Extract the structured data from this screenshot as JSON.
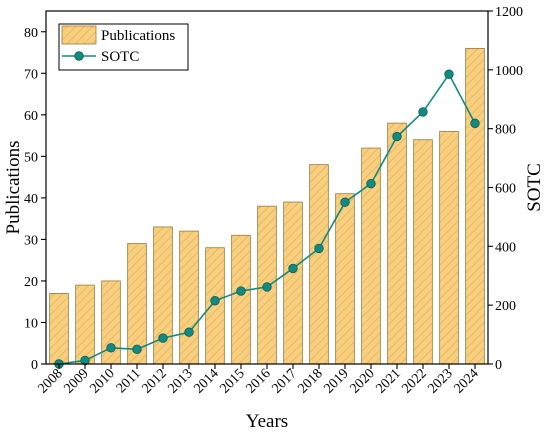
{
  "chart_data": {
    "type": "bar",
    "title": "",
    "categories": [
      "2008",
      "2009",
      "2010",
      "2011",
      "2012",
      "2013",
      "2014",
      "2015",
      "2016",
      "2017",
      "2018",
      "2019",
      "2020",
      "2021",
      "2022",
      "2023",
      "2024"
    ],
    "xlabel": "Years",
    "series": [
      {
        "name": "Publications",
        "type": "bar",
        "axis": "left",
        "values": [
          17,
          19,
          20,
          29,
          33,
          32,
          28,
          31,
          38,
          39,
          48,
          41,
          52,
          58,
          54,
          56,
          76
        ],
        "color": "#f7cf7f",
        "edge_color": "#9a7a3a",
        "hatch_color": "#d9a44d"
      },
      {
        "name": "SOTC",
        "type": "line",
        "axis": "right",
        "values": [
          0,
          12,
          55,
          50,
          88,
          108,
          215,
          248,
          262,
          325,
          393,
          550,
          613,
          773,
          857,
          985,
          818
        ],
        "color": "#128a7f",
        "marker": "circle"
      }
    ],
    "y_left": {
      "label": "Publications",
      "ylim": [
        0,
        85
      ],
      "ticks": [
        0,
        10,
        20,
        30,
        40,
        50,
        60,
        70,
        80
      ]
    },
    "y_right": {
      "label": "SOTC",
      "ylim": [
        0,
        1200
      ],
      "ticks": [
        0,
        200,
        400,
        600,
        800,
        1000,
        1200
      ]
    },
    "legend": {
      "position": "top-left"
    },
    "grid": false
  }
}
